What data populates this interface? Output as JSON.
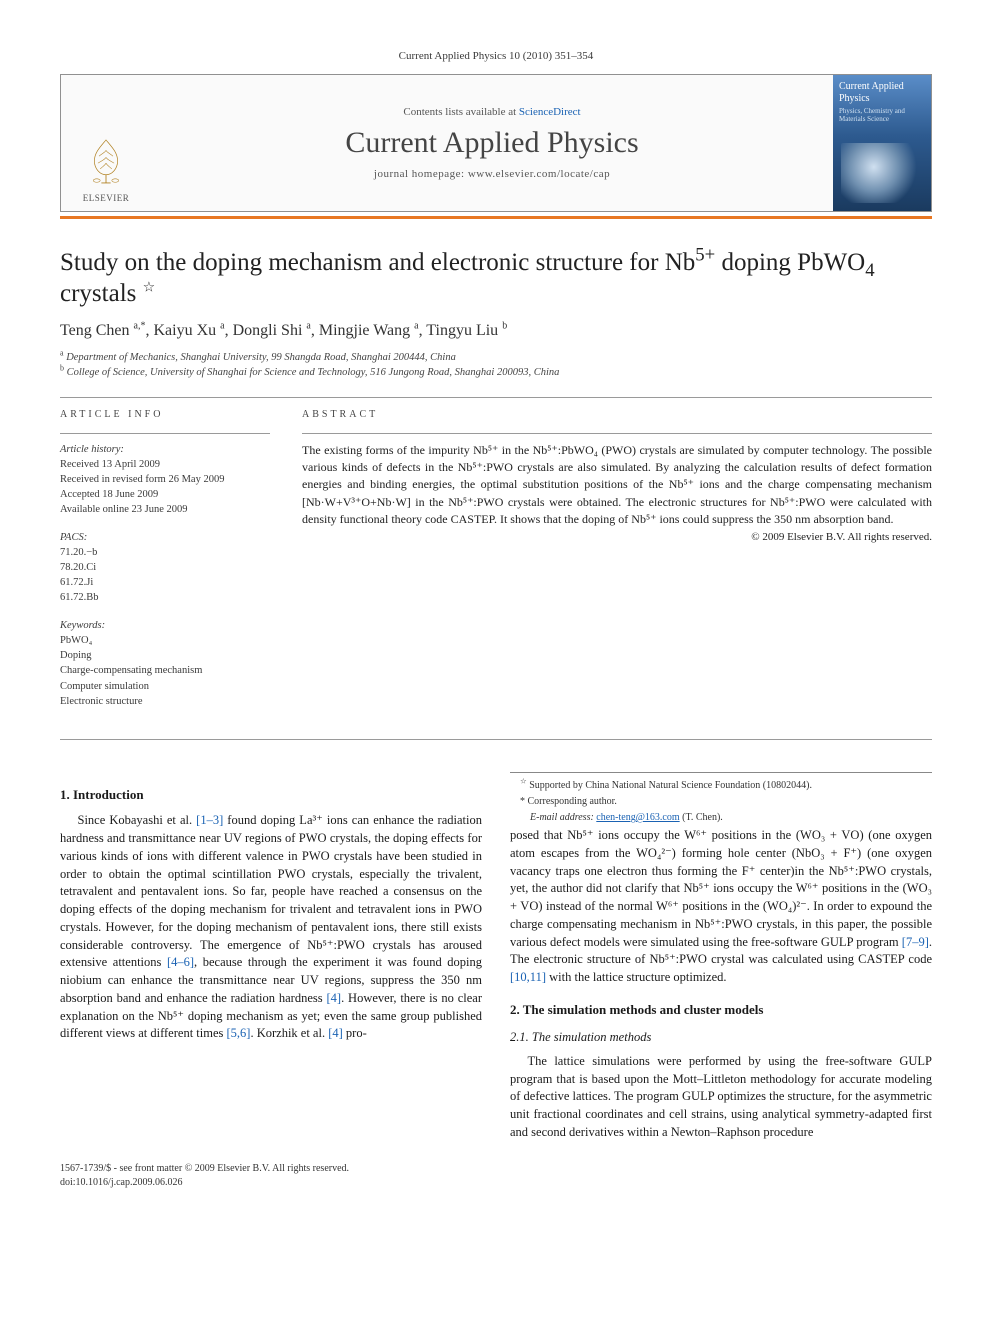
{
  "journal_ref": "Current Applied Physics 10 (2010) 351–354",
  "header": {
    "contents_prefix": "Contents lists available at ",
    "contents_link": "ScienceDirect",
    "journal_title": "Current Applied Physics",
    "homepage_prefix": "journal homepage: ",
    "homepage_url": "www.elsevier.com/locate/cap",
    "publisher": "ELSEVIER",
    "cover_title": "Current Applied Physics",
    "cover_sub": "Physics, Chemistry and Materials Science"
  },
  "colors": {
    "accent_bar": "#e87722",
    "link": "#1a62b3",
    "border": "#909090",
    "cover_grad_top": "#5a8dc8",
    "cover_grad_bot": "#1a3a5f"
  },
  "article": {
    "title_pre": "Study on the doping mechanism and electronic structure for Nb",
    "title_sup": "5+",
    "title_post": " doping PbWO",
    "title_sub": "4",
    "title_end": " crystals",
    "star": "☆",
    "authors_html": "Teng Chen <sup>a,*</sup>, Kaiyu Xu <sup>a</sup>, Dongli Shi <sup>a</sup>, Mingjie Wang <sup>a</sup>, Tingyu Liu <sup>b</sup>",
    "affiliations": [
      {
        "mark": "a",
        "text": "Department of Mechanics, Shanghai University, 99 Shangda Road, Shanghai 200444, China"
      },
      {
        "mark": "b",
        "text": "College of Science, University of Shanghai for Science and Technology, 516 Jungong Road, Shanghai 200093, China"
      }
    ]
  },
  "info": {
    "heading": "ARTICLE INFO",
    "history_label": "Article history:",
    "history": [
      "Received 13 April 2009",
      "Received in revised form 26 May 2009",
      "Accepted 18 June 2009",
      "Available online 23 June 2009"
    ],
    "pacs_label": "PACS:",
    "pacs": [
      "71.20.−b",
      "78.20.Ci",
      "61.72.Ji",
      "61.72.Bb"
    ],
    "keywords_label": "Keywords:",
    "keywords": [
      "PbWO₄",
      "Doping",
      "Charge-compensating mechanism",
      "Computer simulation",
      "Electronic structure"
    ]
  },
  "abstract": {
    "heading": "ABSTRACT",
    "text": "The existing forms of the impurity Nb⁵⁺ in the Nb⁵⁺:PbWO₄ (PWO) crystals are simulated by computer technology. The possible various kinds of defects in the Nb⁵⁺:PWO crystals are also simulated. By analyzing the calculation results of defect formation energies and binding energies, the optimal substitution positions of the Nb⁵⁺ ions and the charge compensating mechanism [Nb·W+V³⁺O+Nb·W] in the Nb⁵⁺:PWO crystals were obtained. The electronic structures for Nb⁵⁺:PWO were calculated with density functional theory code CASTEP. It shows that the doping of Nb⁵⁺ ions could suppress the 350 nm absorption band.",
    "copyright": "© 2009 Elsevier B.V. All rights reserved."
  },
  "sections": {
    "s1_title": "1. Introduction",
    "s1_p1": "Since Kobayashi et al. [1–3] found doping La³⁺ ions can enhance the radiation hardness and transmittance near UV regions of PWO crystals, the doping effects for various kinds of ions with different valence in PWO crystals have been studied in order to obtain the optimal scintillation PWO crystals, especially the trivalent, tetravalent and pentavalent ions. So far, people have reached a consensus on the doping effects of the doping mechanism for trivalent and tetravalent ions in PWO crystals. However, for the doping mechanism of pentavalent ions, there still exists considerable controversy. The emergence of Nb⁵⁺:PWO crystals has aroused extensive attentions [4–6], because through the experiment it was found doping niobium can enhance the transmittance near UV regions, suppress the 350 nm absorption band and enhance the radiation hardness [4]. However, there is no clear explanation on the Nb⁵⁺ doping mechanism as yet; even the same group published different views at different times [5,6]. Korzhik et al. [4] pro-",
    "s1_p2": "posed that Nb⁵⁺ ions occupy the W⁶⁺ positions in the (WO₃ + VO) (one oxygen atom escapes from the WO₄²⁻) forming hole center (NbO₃ + F⁺) (one oxygen vacancy traps one electron thus forming the F⁺ center)in the Nb⁵⁺:PWO crystals, yet, the author did not clarify that Nb⁵⁺ ions occupy the W⁶⁺ positions in the (WO₃ + VO) instead of the normal W⁶⁺ positions in the (WO₄)²⁻. In order to expound the charge compensating mechanism in Nb⁵⁺:PWO crystals, in this paper, the possible various defect models were simulated using the free-software GULP program [7–9]. The electronic structure of Nb⁵⁺:PWO crystal was calculated using CASTEP code [10,11] with the lattice structure optimized.",
    "s2_title": "2. The simulation methods and cluster models",
    "s2_1_title": "2.1. The simulation methods",
    "s2_1_p1": "The lattice simulations were performed by using the free-software GULP program that is based upon the Mott–Littleton methodology for accurate modeling of defective lattices. The program GULP optimizes the structure, for the asymmetric unit fractional coordinates and cell strains, using analytical symmetry-adapted first and second derivatives within a Newton–Raphson procedure"
  },
  "footnotes": {
    "support": "Supported by China National Natural Science Foundation (10802044).",
    "corresponding": "Corresponding author.",
    "email_label": "E-mail address:",
    "email": "chen-teng@163.com",
    "email_who": "(T. Chen)."
  },
  "bottom": {
    "issn_line": "1567-1739/$ - see front matter © 2009 Elsevier B.V. All rights reserved.",
    "doi_line": "doi:10.1016/j.cap.2009.06.026"
  }
}
